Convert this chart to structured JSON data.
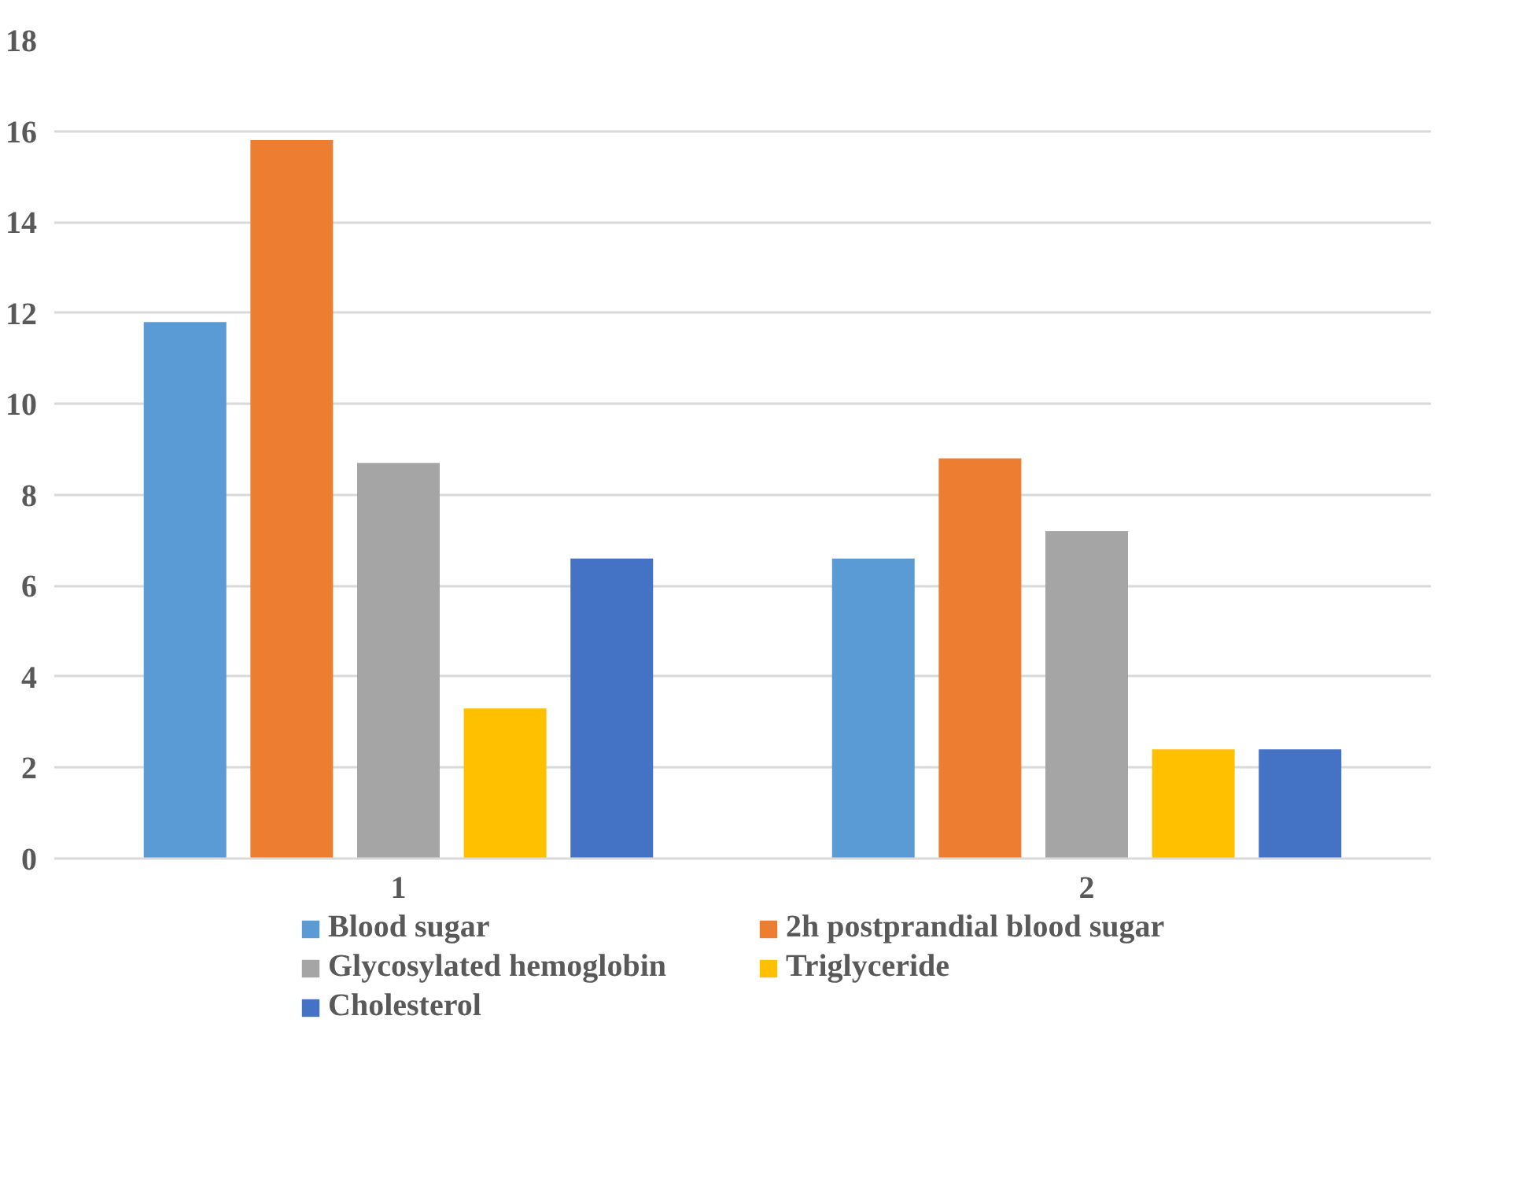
{
  "chart_data": {
    "type": "bar",
    "categories": [
      "1",
      "2"
    ],
    "series": [
      {
        "name": "Blood sugar",
        "color": "#5b9bd5",
        "values": [
          11.8,
          6.6
        ]
      },
      {
        "name": "2h postprandial blood sugar",
        "color": "#ed7d31",
        "values": [
          15.8,
          8.8
        ]
      },
      {
        "name": "Glycosylated hemoglobin",
        "color": "#a5a5a5",
        "values": [
          8.7,
          7.2
        ]
      },
      {
        "name": "Triglyceride",
        "color": "#ffc000",
        "values": [
          3.3,
          2.4
        ]
      },
      {
        "name": "Cholesterol",
        "color": "#4472c4",
        "values": [
          6.6,
          2.4
        ]
      }
    ],
    "ylim": [
      0,
      18
    ],
    "yticks": [
      0,
      2,
      4,
      6,
      8,
      10,
      12,
      14,
      16,
      18
    ],
    "grid": "y",
    "legend": "bottom"
  }
}
